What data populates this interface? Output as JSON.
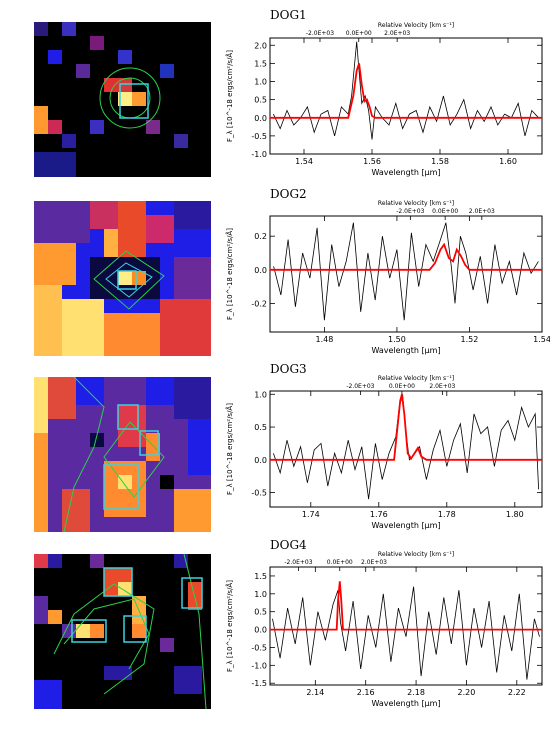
{
  "figure": {
    "panels": [
      {
        "title": "DOG1",
        "chart_data": {
          "type": "line",
          "title": "DOG1",
          "xlabel": "Wavelength [μm]",
          "ylabel": "F_λ [10^-18 ergs/cm²/s/Å]",
          "top_axis_label": "Relative Velocity [km s⁻¹]",
          "top_ticks": [
            "-2.0E+03",
            "0.0E+00",
            "2.0E+03"
          ],
          "top_tick_x": [
            1.5447,
            1.5561,
            1.5674
          ],
          "xlim": [
            1.53,
            1.61
          ],
          "ylim": [
            -1.0,
            2.2
          ],
          "xticks": [
            1.54,
            1.56,
            1.58,
            1.6
          ],
          "xtick_labels": [
            "1.54",
            "1.56",
            "1.58",
            "1.60"
          ],
          "yticks": [
            -1.0,
            -0.5,
            0.0,
            0.5,
            1.0,
            1.5,
            2.0
          ],
          "ytick_labels": [
            "-1.0",
            "-0.5",
            "0.0",
            "0.5",
            "1.0",
            "1.5",
            "2.0"
          ],
          "series": [
            {
              "color": "#000000",
              "x": [
                1.531,
                1.533,
                1.535,
                1.537,
                1.539,
                1.541,
                1.543,
                1.545,
                1.547,
                1.549,
                1.551,
                1.553,
                1.554,
                1.555,
                1.5555,
                1.556,
                1.557,
                1.558,
                1.559,
                1.56,
                1.561,
                1.563,
                1.565,
                1.567,
                1.569,
                1.571,
                1.573,
                1.575,
                1.577,
                1.579,
                1.581,
                1.583,
                1.585,
                1.587,
                1.589,
                1.591,
                1.593,
                1.595,
                1.597,
                1.599,
                1.601,
                1.603,
                1.605,
                1.607,
                1.609
              ],
              "y": [
                0.1,
                -0.3,
                0.2,
                -0.2,
                0.0,
                0.3,
                -0.4,
                0.1,
                0.2,
                -0.5,
                0.3,
                0.1,
                0.6,
                1.6,
                2.1,
                1.5,
                0.4,
                0.6,
                0.2,
                -0.6,
                0.3,
                0.0,
                -0.2,
                0.4,
                -0.3,
                0.1,
                0.2,
                -0.4,
                0.3,
                -0.1,
                0.6,
                -0.2,
                0.1,
                0.5,
                -0.3,
                0.2,
                -0.1,
                0.3,
                -0.2,
                0.1,
                0.0,
                0.4,
                -0.5,
                0.2,
                0.0
              ]
            },
            {
              "color": "#ff0000",
              "x": [
                1.53,
                1.553,
                1.5545,
                1.5555,
                1.5562,
                1.557,
                1.5578,
                1.5585,
                1.5593,
                1.56,
                1.561,
                1.563,
                1.61
              ],
              "y": [
                0.0,
                0.0,
                0.6,
                1.3,
                1.5,
                0.9,
                0.45,
                0.5,
                0.3,
                0.05,
                0.0,
                0.0,
                0.0
              ]
            }
          ]
        }
      },
      {
        "title": "DOG2",
        "chart_data": {
          "type": "line",
          "title": "DOG2",
          "xlabel": "Wavelength [μm]",
          "ylabel": "F_λ [10^-18 ergs/cm²/s/Å]",
          "top_axis_label": "Relative Velocity [km s⁻¹]",
          "top_ticks": [
            "-2.0E+03",
            "0.0E+00",
            "2.0E+03"
          ],
          "top_tick_x": [
            1.5037,
            1.5133,
            1.5234
          ],
          "xlim": [
            1.465,
            1.54
          ],
          "ylim": [
            -0.37,
            0.32
          ],
          "xticks": [
            1.48,
            1.5,
            1.52,
            1.54
          ],
          "xtick_labels": [
            "1.48",
            "1.50",
            "1.52",
            "1.54"
          ],
          "yticks": [
            -0.2,
            0.0,
            0.2
          ],
          "ytick_labels": [
            "-0.2",
            "0.0",
            "0.2"
          ],
          "series": [
            {
              "color": "#000000",
              "x": [
                1.466,
                1.468,
                1.47,
                1.472,
                1.474,
                1.476,
                1.478,
                1.48,
                1.482,
                1.484,
                1.486,
                1.488,
                1.49,
                1.492,
                1.494,
                1.496,
                1.498,
                1.5,
                1.502,
                1.504,
                1.506,
                1.508,
                1.51,
                1.512,
                1.5135,
                1.515,
                1.516,
                1.5175,
                1.519,
                1.521,
                1.523,
                1.525,
                1.527,
                1.529,
                1.531,
                1.533,
                1.535,
                1.537,
                1.539
              ],
              "y": [
                0.02,
                -0.15,
                0.18,
                -0.22,
                0.1,
                -0.05,
                0.25,
                -0.3,
                0.15,
                -0.1,
                0.05,
                0.28,
                -0.25,
                0.1,
                -0.18,
                0.2,
                -0.05,
                0.12,
                -0.3,
                0.22,
                -0.1,
                0.15,
                0.05,
                0.18,
                0.28,
                0.02,
                -0.2,
                0.2,
                0.1,
                -0.12,
                0.08,
                -0.2,
                0.15,
                -0.08,
                0.05,
                -0.15,
                0.1,
                -0.02,
                0.05
              ]
            },
            {
              "color": "#ff0000",
              "x": [
                1.465,
                1.509,
                1.5105,
                1.512,
                1.513,
                1.5143,
                1.5155,
                1.5165,
                1.5177,
                1.5188,
                1.52,
                1.522,
                1.54
              ],
              "y": [
                0.0,
                0.0,
                0.04,
                0.12,
                0.15,
                0.07,
                0.05,
                0.12,
                0.08,
                0.03,
                0.0,
                0.0,
                0.0
              ]
            }
          ]
        }
      },
      {
        "title": "DOG3",
        "chart_data": {
          "type": "line",
          "title": "DOG3",
          "xlabel": "Wavelength [μm]",
          "ylabel": "F_λ [10^-18 ergs/cm²/s/Å]",
          "top_axis_label": "Relative Velocity [km s⁻¹]",
          "top_ticks": [
            "-2.0E+03",
            "0.0E+00",
            "2.0E+03"
          ],
          "top_tick_x": [
            1.7546,
            1.7668,
            1.7787
          ],
          "xlim": [
            1.728,
            1.808
          ],
          "ylim": [
            -0.72,
            1.05
          ],
          "xticks": [
            1.74,
            1.76,
            1.78,
            1.8
          ],
          "xtick_labels": [
            "1.74",
            "1.76",
            "1.78",
            "1.80"
          ],
          "yticks": [
            -0.5,
            0.0,
            0.5,
            1.0
          ],
          "ytick_labels": [
            "-0.5",
            "0.0",
            "0.5",
            "1.0"
          ],
          "series": [
            {
              "color": "#000000",
              "x": [
                1.729,
                1.731,
                1.733,
                1.735,
                1.737,
                1.739,
                1.741,
                1.743,
                1.745,
                1.747,
                1.749,
                1.751,
                1.753,
                1.755,
                1.757,
                1.759,
                1.761,
                1.763,
                1.765,
                1.766,
                1.767,
                1.768,
                1.769,
                1.77,
                1.772,
                1.774,
                1.776,
                1.778,
                1.78,
                1.782,
                1.784,
                1.786,
                1.788,
                1.79,
                1.792,
                1.794,
                1.796,
                1.798,
                1.8,
                1.802,
                1.804,
                1.806,
                1.807
              ],
              "y": [
                0.1,
                -0.2,
                0.3,
                -0.1,
                0.2,
                -0.35,
                0.15,
                0.25,
                -0.4,
                0.1,
                -0.2,
                0.3,
                -0.15,
                0.2,
                -0.6,
                0.25,
                -0.3,
                0.1,
                0.35,
                0.8,
                1.0,
                0.4,
                0.0,
                0.05,
                0.2,
                -0.3,
                0.15,
                0.45,
                -0.1,
                0.3,
                0.55,
                -0.2,
                0.7,
                0.4,
                0.5,
                -0.1,
                0.45,
                0.6,
                0.3,
                0.8,
                0.5,
                0.7,
                -0.45
              ]
            },
            {
              "color": "#ff0000",
              "x": [
                1.728,
                1.7645,
                1.7655,
                1.7663,
                1.7668,
                1.7675,
                1.7685,
                1.7695,
                1.7705,
                1.7715,
                1.7725,
                1.774,
                1.808
              ],
              "y": [
                0.0,
                0.0,
                0.5,
                0.9,
                1.0,
                0.7,
                0.1,
                0.02,
                0.1,
                0.18,
                0.05,
                0.0,
                0.0
              ]
            }
          ]
        }
      },
      {
        "title": "DOG4",
        "chart_data": {
          "type": "line",
          "title": "DOG4",
          "xlabel": "Wavelength [μm]",
          "ylabel": "F_λ [10^-18 ergs/cm²/s/Å]",
          "top_axis_label": "Relative Velocity [km s⁻¹]",
          "top_ticks": [
            "-2.0E+03",
            "0.0E+00",
            "2.0E+03"
          ],
          "top_tick_x": [
            2.1333,
            2.1497,
            2.1633
          ],
          "xlim": [
            2.122,
            2.23
          ],
          "ylim": [
            -1.55,
            1.75
          ],
          "xticks": [
            2.14,
            2.16,
            2.18,
            2.2,
            2.22
          ],
          "xtick_labels": [
            "2.14",
            "2.16",
            "2.18",
            "2.20",
            "2.22"
          ],
          "yticks": [
            -1.5,
            -1.0,
            -0.5,
            0.0,
            0.5,
            1.0,
            1.5
          ],
          "ytick_labels": [
            "-1.5",
            "-1.0",
            "-0.5",
            "0.0",
            "0.5",
            "1.0",
            "1.5"
          ],
          "series": [
            {
              "color": "#000000",
              "x": [
                2.123,
                2.126,
                2.129,
                2.132,
                2.135,
                2.138,
                2.141,
                2.144,
                2.147,
                2.149,
                2.15,
                2.152,
                2.155,
                2.158,
                2.161,
                2.164,
                2.167,
                2.17,
                2.173,
                2.176,
                2.179,
                2.182,
                2.185,
                2.188,
                2.191,
                2.194,
                2.197,
                2.2,
                2.203,
                2.206,
                2.209,
                2.212,
                2.215,
                2.218,
                2.221,
                2.224,
                2.227,
                2.229
              ],
              "y": [
                0.3,
                -0.8,
                0.6,
                -0.4,
                0.9,
                -1.0,
                0.5,
                -0.3,
                0.7,
                1.1,
                0.2,
                -0.6,
                0.8,
                -1.1,
                0.4,
                -0.5,
                1.0,
                -0.9,
                0.6,
                -0.2,
                1.2,
                -1.3,
                0.5,
                -0.7,
                0.9,
                -0.4,
                1.1,
                -1.0,
                0.6,
                -0.5,
                0.8,
                -1.2,
                0.4,
                -0.6,
                1.0,
                -1.4,
                0.3,
                -0.2
              ]
            },
            {
              "color": "#ff0000",
              "x": [
                2.122,
                2.1485,
                2.149,
                2.1497,
                2.1503,
                2.151,
                2.23
              ],
              "y": [
                0.0,
                0.0,
                0.8,
                1.35,
                0.8,
                0.0,
                0.0
              ]
            }
          ]
        }
      }
    ]
  }
}
